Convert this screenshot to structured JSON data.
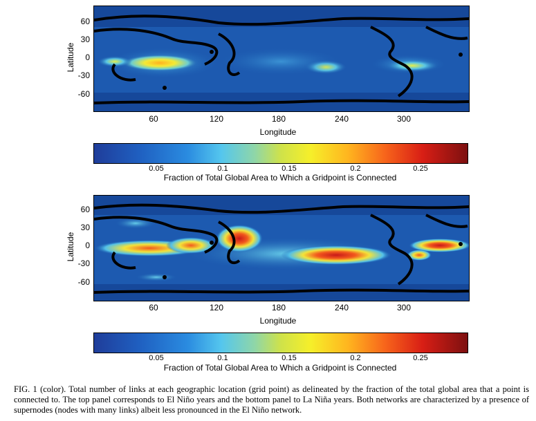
{
  "panels": [
    {
      "name": "El Niño",
      "ylabel": "Latitude",
      "xlabel": "Longitude",
      "yticks": [
        "60",
        "30",
        "0",
        "-30",
        "-60"
      ],
      "xticks": [
        "60",
        "120",
        "180",
        "240",
        "300"
      ],
      "colorbar": {
        "ticks": [
          "0.05",
          "0.1",
          "0.15",
          "0.2",
          "0.25"
        ],
        "label": "Fraction of Total Global Area to Which a Gridpoint is Connected"
      }
    },
    {
      "name": "La Niña",
      "ylabel": "Latitude",
      "xlabel": "Longitude",
      "yticks": [
        "60",
        "30",
        "0",
        "-30",
        "-60"
      ],
      "xticks": [
        "60",
        "120",
        "180",
        "240",
        "300"
      ],
      "colorbar": {
        "ticks": [
          "0.05",
          "0.1",
          "0.15",
          "0.2",
          "0.25"
        ],
        "label": "Fraction of Total Global Area to Which a Gridpoint is Connected"
      }
    }
  ],
  "caption": "FIG. 1 (color).    Total number of links at each geographic location (grid point) as delineated by the fraction of the total global area that a point is connected to. The top panel corresponds to El Niño years and the bottom panel to La Niña years. Both networks are characterized by a presence of supernodes (nodes with many links) albeit less pronounced in the El Niño network."
}
